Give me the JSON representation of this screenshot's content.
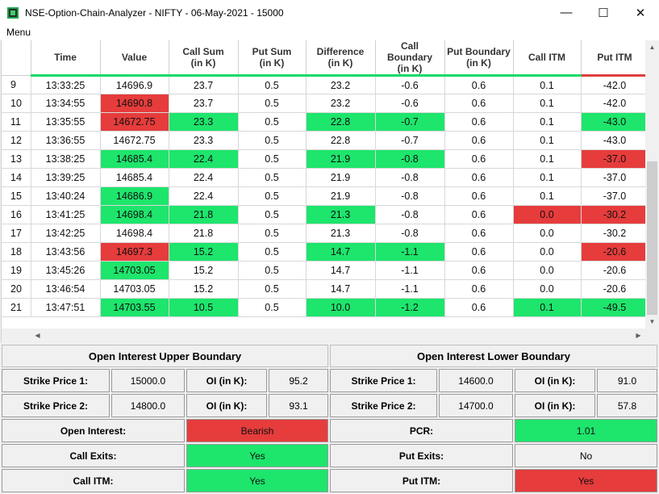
{
  "window": {
    "title": "NSE-Option-Chain-Analyzer - NIFTY - 06-May-2021 - 15000",
    "icon": "app-icon",
    "controls": [
      "minimize-icon",
      "maximize-icon",
      "close-icon"
    ]
  },
  "menubar": {
    "menu_label": "Menu"
  },
  "table": {
    "columns": [
      {
        "label": "",
        "sub": ""
      },
      {
        "label": "Time",
        "sub": ""
      },
      {
        "label": "Value",
        "sub": ""
      },
      {
        "label": "Call Sum",
        "sub": "(in K)"
      },
      {
        "label": "Put Sum",
        "sub": "(in K)"
      },
      {
        "label": "Difference",
        "sub": "(in K)"
      },
      {
        "label": "Call Boundary",
        "sub": "(in K)"
      },
      {
        "label": "Put Boundary",
        "sub": "(in K)"
      },
      {
        "label": "Call ITM",
        "sub": ""
      },
      {
        "label": "Put ITM",
        "sub": ""
      }
    ],
    "rows": [
      {
        "n": "9",
        "time": "13:33:25",
        "value": "14696.9",
        "call_sum": "23.7",
        "put_sum": "0.5",
        "diff": "23.2",
        "call_b": "-0.6",
        "put_b": "0.6",
        "call_itm": "0.1",
        "put_itm": "-42.0"
      },
      {
        "n": "10",
        "time": "13:34:55",
        "value": "14690.8",
        "call_sum": "23.7",
        "put_sum": "0.5",
        "diff": "23.2",
        "call_b": "-0.6",
        "put_b": "0.6",
        "call_itm": "0.1",
        "put_itm": "-42.0"
      },
      {
        "n": "11",
        "time": "13:35:55",
        "value": "14672.75",
        "call_sum": "23.3",
        "put_sum": "0.5",
        "diff": "22.8",
        "call_b": "-0.7",
        "put_b": "0.6",
        "call_itm": "0.1",
        "put_itm": "-43.0"
      },
      {
        "n": "12",
        "time": "13:36:55",
        "value": "14672.75",
        "call_sum": "23.3",
        "put_sum": "0.5",
        "diff": "22.8",
        "call_b": "-0.7",
        "put_b": "0.6",
        "call_itm": "0.1",
        "put_itm": "-43.0"
      },
      {
        "n": "13",
        "time": "13:38:25",
        "value": "14685.4",
        "call_sum": "22.4",
        "put_sum": "0.5",
        "diff": "21.9",
        "call_b": "-0.8",
        "put_b": "0.6",
        "call_itm": "0.1",
        "put_itm": "-37.0"
      },
      {
        "n": "14",
        "time": "13:39:25",
        "value": "14685.4",
        "call_sum": "22.4",
        "put_sum": "0.5",
        "diff": "21.9",
        "call_b": "-0.8",
        "put_b": "0.6",
        "call_itm": "0.1",
        "put_itm": "-37.0"
      },
      {
        "n": "15",
        "time": "13:40:24",
        "value": "14686.9",
        "call_sum": "22.4",
        "put_sum": "0.5",
        "diff": "21.9",
        "call_b": "-0.8",
        "put_b": "0.6",
        "call_itm": "0.1",
        "put_itm": "-37.0"
      },
      {
        "n": "16",
        "time": "13:41:25",
        "value": "14698.4",
        "call_sum": "21.8",
        "put_sum": "0.5",
        "diff": "21.3",
        "call_b": "-0.8",
        "put_b": "0.6",
        "call_itm": "0.0",
        "put_itm": "-30.2"
      },
      {
        "n": "17",
        "time": "13:42:25",
        "value": "14698.4",
        "call_sum": "21.8",
        "put_sum": "0.5",
        "diff": "21.3",
        "call_b": "-0.8",
        "put_b": "0.6",
        "call_itm": "0.0",
        "put_itm": "-30.2"
      },
      {
        "n": "18",
        "time": "13:43:56",
        "value": "14697.3",
        "call_sum": "15.2",
        "put_sum": "0.5",
        "diff": "14.7",
        "call_b": "-1.1",
        "put_b": "0.6",
        "call_itm": "0.0",
        "put_itm": "-20.6"
      },
      {
        "n": "19",
        "time": "13:45:26",
        "value": "14703.05",
        "call_sum": "15.2",
        "put_sum": "0.5",
        "diff": "14.7",
        "call_b": "-1.1",
        "put_b": "0.6",
        "call_itm": "0.0",
        "put_itm": "-20.6"
      },
      {
        "n": "20",
        "time": "13:46:54",
        "value": "14703.05",
        "call_sum": "15.2",
        "put_sum": "0.5",
        "diff": "14.7",
        "call_b": "-1.1",
        "put_b": "0.6",
        "call_itm": "0.0",
        "put_itm": "-20.6"
      },
      {
        "n": "21",
        "time": "13:47:51",
        "value": "14703.55",
        "call_sum": "10.5",
        "put_sum": "0.5",
        "diff": "10.0",
        "call_b": "-1.2",
        "put_b": "0.6",
        "call_itm": "0.1",
        "put_itm": "-49.5"
      }
    ],
    "cell_colors": {
      "green": "#1ee56c",
      "red": "#e63c3c",
      "map": [
        {
          "value": "",
          "call_sum": "",
          "diff": "",
          "call_b": "",
          "call_itm": "",
          "put_itm": ""
        },
        {
          "value": "r",
          "call_sum": "",
          "diff": "",
          "call_b": "",
          "call_itm": "",
          "put_itm": ""
        },
        {
          "value": "r",
          "call_sum": "g",
          "diff": "g",
          "call_b": "g",
          "call_itm": "",
          "put_itm": "g"
        },
        {
          "value": "",
          "call_sum": "",
          "diff": "",
          "call_b": "",
          "call_itm": "",
          "put_itm": ""
        },
        {
          "value": "g",
          "call_sum": "g",
          "diff": "g",
          "call_b": "g",
          "call_itm": "",
          "put_itm": "r"
        },
        {
          "value": "",
          "call_sum": "",
          "diff": "",
          "call_b": "",
          "call_itm": "",
          "put_itm": ""
        },
        {
          "value": "g",
          "call_sum": "",
          "diff": "",
          "call_b": "",
          "call_itm": "",
          "put_itm": ""
        },
        {
          "value": "g",
          "call_sum": "g",
          "diff": "g",
          "call_b": "",
          "call_itm": "r",
          "put_itm": "r"
        },
        {
          "value": "",
          "call_sum": "",
          "diff": "",
          "call_b": "",
          "call_itm": "",
          "put_itm": ""
        },
        {
          "value": "r",
          "call_sum": "g",
          "diff": "g",
          "call_b": "g",
          "call_itm": "",
          "put_itm": "r"
        },
        {
          "value": "g",
          "call_sum": "",
          "diff": "",
          "call_b": "",
          "call_itm": "",
          "put_itm": ""
        },
        {
          "value": "",
          "call_sum": "",
          "diff": "",
          "call_b": "",
          "call_itm": "",
          "put_itm": ""
        },
        {
          "value": "g",
          "call_sum": "g",
          "diff": "g",
          "call_b": "g",
          "call_itm": "g",
          "put_itm": "g"
        }
      ]
    }
  },
  "upper": {
    "title": "Open Interest Upper Boundary",
    "sp1_label": "Strike Price 1:",
    "sp1_value": "15000.0",
    "oi1_label": "OI (in K):",
    "oi1_value": "95.2",
    "sp2_label": "Strike Price 2:",
    "sp2_value": "14800.0",
    "oi2_label": "OI (in K):",
    "oi2_value": "93.1"
  },
  "lower": {
    "title": "Open Interest Lower Boundary",
    "sp1_label": "Strike Price 1:",
    "sp1_value": "14600.0",
    "oi1_label": "OI (in K):",
    "oi1_value": "91.0",
    "sp2_label": "Strike Price 2:",
    "sp2_value": "14700.0",
    "oi2_label": "OI (in K):",
    "oi2_value": "57.8"
  },
  "status": {
    "open_interest_label": "Open Interest:",
    "open_interest_value": "Bearish",
    "open_interest_color": "red",
    "call_exits_label": "Call Exits:",
    "call_exits_value": "Yes",
    "call_exits_color": "green",
    "call_itm_label": "Call ITM:",
    "call_itm_value": "Yes",
    "call_itm_color": "green",
    "pcr_label": "PCR:",
    "pcr_value": "1.01",
    "pcr_color": "green",
    "put_exits_label": "Put Exits:",
    "put_exits_value": "No",
    "put_exits_color": "none",
    "put_itm_label": "Put ITM:",
    "put_itm_value": "Yes",
    "put_itm_color": "red"
  }
}
